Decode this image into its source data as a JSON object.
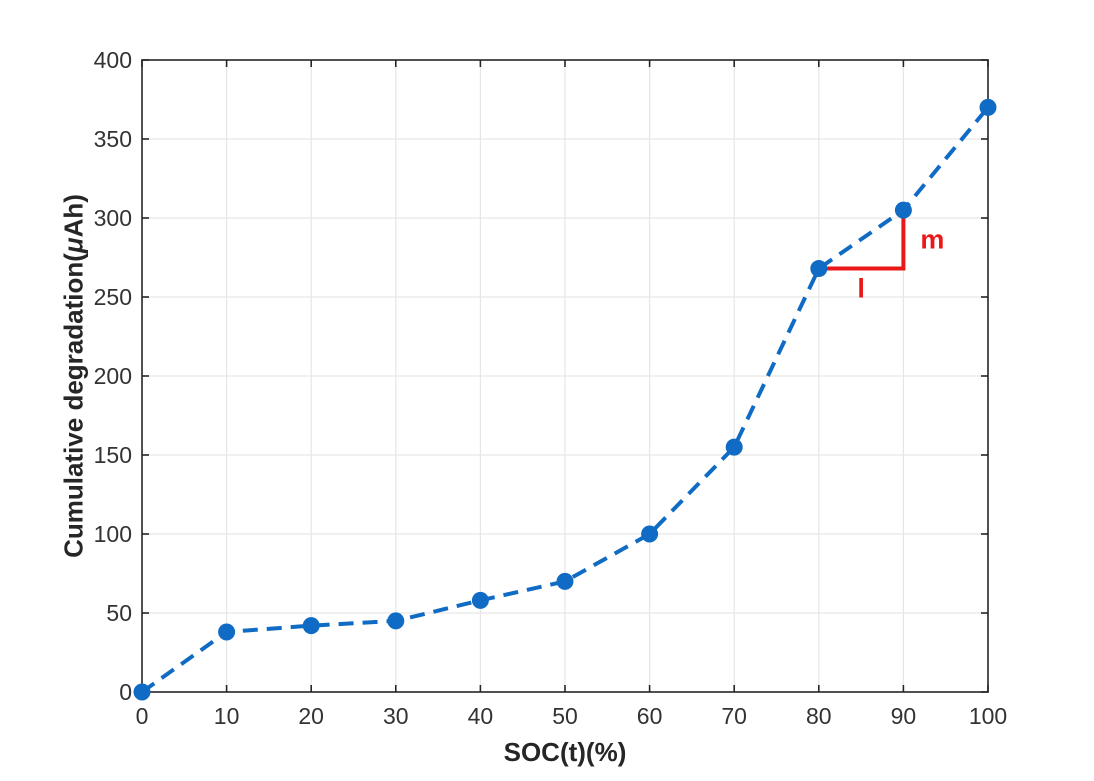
{
  "figure": {
    "background": "#ffffff"
  },
  "colors": {
    "line": "#0f6bc4",
    "marker": "#0f6bc4",
    "annotation": "#ea1917",
    "grid": "#e6e6e6",
    "axis": "#262626",
    "tick_label": "#333333"
  },
  "chart_data": {
    "type": "line",
    "title": "",
    "xlabel": "SOC(t)(%)",
    "ylabel": "Cumulative degradation(μAh)",
    "ylabel_parts": {
      "prefix": "Cumulative degradation(",
      "mu": "μ",
      "suffix": "Ah)"
    },
    "x": [
      0,
      10,
      20,
      30,
      40,
      50,
      60,
      70,
      80,
      90,
      100
    ],
    "series": [
      {
        "name": "cumulative-degradation",
        "values": [
          0,
          38,
          42,
          45,
          58,
          70,
          100,
          155,
          268,
          305,
          370
        ],
        "color": "#0f6bc4",
        "line_style": "dashed",
        "marker": "circle"
      }
    ],
    "xlim": [
      0,
      100
    ],
    "ylim": [
      0,
      400
    ],
    "x_ticks": [
      0,
      10,
      20,
      30,
      40,
      50,
      60,
      70,
      80,
      90,
      100
    ],
    "y_ticks": [
      0,
      50,
      100,
      150,
      200,
      250,
      300,
      350,
      400
    ],
    "grid": true,
    "legend": false,
    "annotation": {
      "type": "slope-indicator",
      "color": "#ea1917",
      "run": {
        "from": [
          80,
          268
        ],
        "to": [
          90,
          268
        ],
        "label": "l"
      },
      "rise": {
        "from": [
          90,
          268
        ],
        "to": [
          90,
          305
        ],
        "label": "m"
      }
    }
  }
}
